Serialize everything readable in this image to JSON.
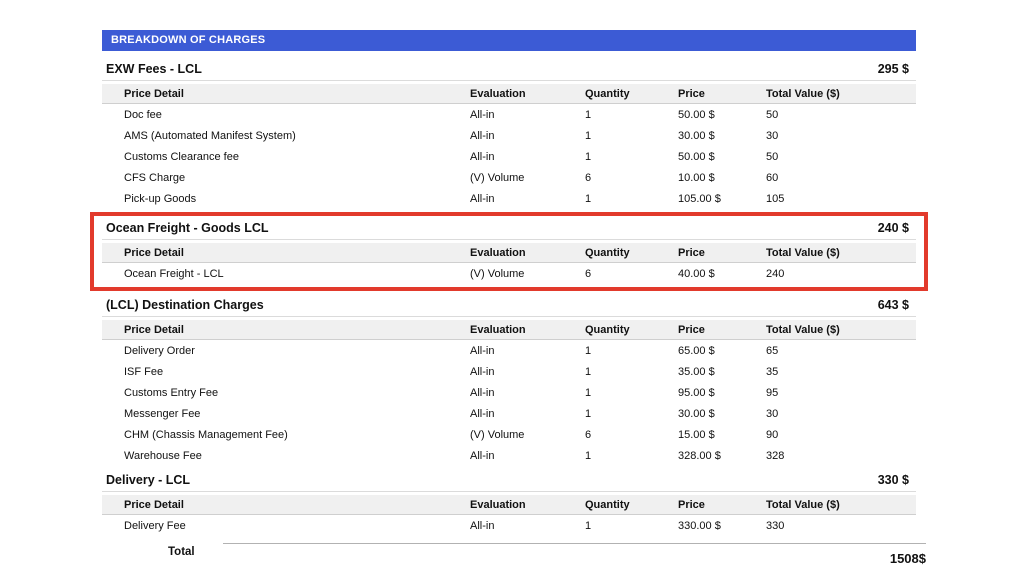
{
  "banner": {
    "title": "BREAKDOWN OF CHARGES"
  },
  "columns": [
    "Price Detail",
    "Evaluation",
    "Quantity",
    "Price",
    "Total Value ($)"
  ],
  "sections": [
    {
      "title": "EXW Fees - LCL",
      "total": "295 $",
      "highlighted": false,
      "rows": [
        [
          "Doc fee",
          "All-in",
          "1",
          "50.00 $",
          "50"
        ],
        [
          "AMS (Automated Manifest System)",
          "All-in",
          "1",
          "30.00 $",
          "30"
        ],
        [
          "Customs Clearance fee",
          "All-in",
          "1",
          "50.00 $",
          "50"
        ],
        [
          "CFS Charge",
          "(V) Volume",
          "6",
          "10.00 $",
          "60"
        ],
        [
          "Pick-up Goods",
          "All-in",
          "1",
          "105.00 $",
          "105"
        ]
      ]
    },
    {
      "title": "Ocean Freight - Goods LCL",
      "total": "240 $",
      "highlighted": true,
      "rows": [
        [
          "Ocean Freight - LCL",
          "(V) Volume",
          "6",
          "40.00 $",
          "240"
        ]
      ]
    },
    {
      "title": "(LCL) Destination Charges",
      "total": "643 $",
      "highlighted": false,
      "rows": [
        [
          "Delivery Order",
          "All-in",
          "1",
          "65.00 $",
          "65"
        ],
        [
          "ISF Fee",
          "All-in",
          "1",
          "35.00 $",
          "35"
        ],
        [
          "Customs Entry Fee",
          "All-in",
          "1",
          "95.00 $",
          "95"
        ],
        [
          "Messenger Fee",
          "All-in",
          "1",
          "30.00 $",
          "30"
        ],
        [
          "CHM (Chassis Management Fee)",
          "(V) Volume",
          "6",
          "15.00 $",
          "90"
        ],
        [
          "Warehouse Fee",
          "All-in",
          "1",
          "328.00 $",
          "328"
        ]
      ]
    },
    {
      "title": "Delivery - LCL",
      "total": "330 $",
      "highlighted": false,
      "rows": [
        [
          "Delivery Fee",
          "All-in",
          "1",
          "330.00 $",
          "330"
        ]
      ]
    }
  ],
  "grand_total": {
    "label": "Total",
    "value": "1508$"
  },
  "colors": {
    "banner_bg": "#3c5bd5",
    "banner_text": "#ffffff",
    "highlight_border": "#e23a2c",
    "table_header_bg": "#f0f0f0"
  }
}
